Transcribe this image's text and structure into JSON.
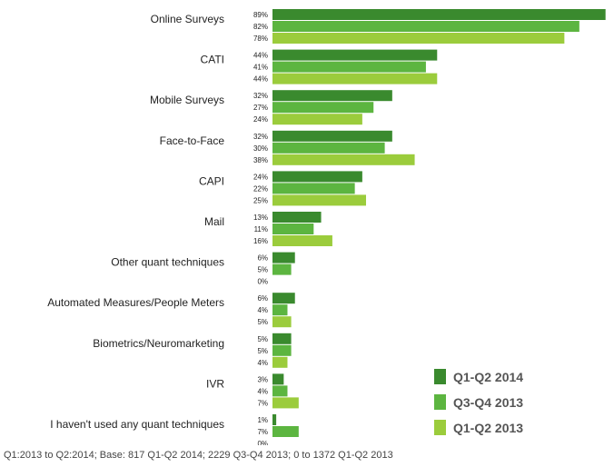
{
  "chart_data": {
    "type": "bar",
    "orientation": "horizontal",
    "categories": [
      "Online Surveys",
      "CATI",
      "Mobile Surveys",
      "Face-to-Face",
      "CAPI",
      "Mail",
      "Other quant techniques",
      "Automated Measures/People Meters",
      "Biometrics/Neuromarketing",
      "IVR",
      "I haven't used any quant techniques"
    ],
    "series": [
      {
        "name": "Q1-Q2 2014",
        "color": "#3a8a2e",
        "values": [
          89,
          44,
          32,
          32,
          24,
          13,
          6,
          6,
          5,
          3,
          1
        ]
      },
      {
        "name": "Q3-Q4 2013",
        "color": "#5cb540",
        "values": [
          82,
          41,
          27,
          30,
          22,
          11,
          5,
          4,
          5,
          4,
          7
        ]
      },
      {
        "name": "Q1-Q2 2013",
        "color": "#9bcc3c",
        "values": [
          78,
          44,
          24,
          38,
          25,
          16,
          0,
          5,
          4,
          7,
          0
        ]
      }
    ],
    "value_suffix": "%",
    "xlim": [
      0,
      100
    ],
    "legend_position": "bottom-right",
    "footnote": "Q1:2013 to Q2:2014; Base: 817 Q1-Q2 2014; 2229 Q3-Q4 2013; 0 to 1372 Q1-Q2 2013"
  }
}
